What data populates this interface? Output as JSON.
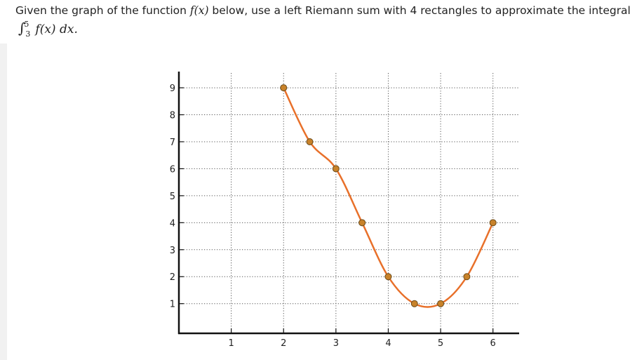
{
  "question": {
    "text_before": "Given the graph of the function ",
    "function_name": "f(x)",
    "text_after": " below, use a left Riemann sum with 4 rectangles to approximate the integral",
    "integral": {
      "symbol": "∫",
      "lower": "3",
      "upper": "5",
      "integrand": "f(x) dx."
    }
  },
  "chart_data": {
    "type": "line",
    "title": "",
    "xlabel": "",
    "ylabel": "",
    "xlim": [
      0.0,
      6.5
    ],
    "ylim": [
      -0.1,
      9.6
    ],
    "x_ticks": [
      1,
      2,
      3,
      4,
      5,
      6
    ],
    "y_ticks": [
      1,
      2,
      3,
      4,
      5,
      6,
      7,
      8,
      9
    ],
    "grid": true,
    "grid_style": "dotted",
    "series": [
      {
        "color": "#e8702a",
        "marker_color": "#c8822a",
        "points": [
          {
            "x": 2,
            "y": 9
          },
          {
            "x": 2.5,
            "y": 7
          },
          {
            "x": 3,
            "y": 6
          },
          {
            "x": 3.5,
            "y": 4
          },
          {
            "x": 4,
            "y": 2
          },
          {
            "x": 4.5,
            "y": 1
          },
          {
            "x": 5,
            "y": 1
          },
          {
            "x": 5.5,
            "y": 2
          },
          {
            "x": 6,
            "y": 4
          }
        ]
      }
    ]
  }
}
